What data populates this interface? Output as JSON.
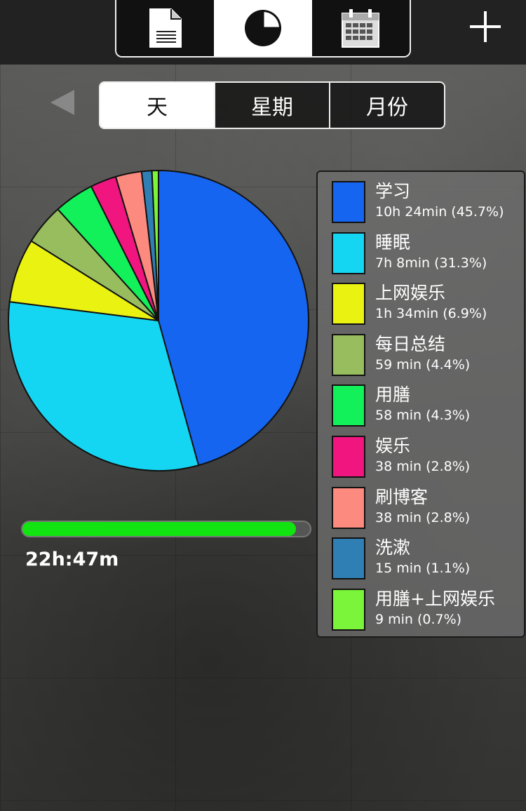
{
  "toolbar": {
    "tabs": [
      {
        "icon": "document-icon",
        "active": false
      },
      {
        "icon": "pie-chart-icon",
        "active": true
      },
      {
        "icon": "calendar-icon",
        "active": false
      }
    ],
    "add_icon": "plus-icon"
  },
  "period": {
    "back_icon": "back-arrow-icon",
    "options": [
      "天",
      "星期",
      "月份"
    ],
    "selected": "天"
  },
  "summary": {
    "total_label": "22h:47m",
    "progress_fraction": 0.95,
    "progress_color": "#11e411"
  },
  "chart_data": {
    "type": "pie",
    "title": "",
    "slices": [
      {
        "label": "学习",
        "duration": "10h 24min",
        "percent_label": "(45.7%)",
        "value": 45.7,
        "color": "#1565f0"
      },
      {
        "label": "睡眠",
        "duration": "7h 8min",
        "percent_label": "(31.3%)",
        "value": 31.3,
        "color": "#15d6f2"
      },
      {
        "label": "上网娱乐",
        "duration": "1h 34min",
        "percent_label": "(6.9%)",
        "value": 6.9,
        "color": "#eaf212"
      },
      {
        "label": "每日总结",
        "duration": "59 min",
        "percent_label": "(4.4%)",
        "value": 4.4,
        "color": "#97bd5e"
      },
      {
        "label": "用膳",
        "duration": "58 min",
        "percent_label": "(4.3%)",
        "value": 4.3,
        "color": "#12f05a"
      },
      {
        "label": "娱乐",
        "duration": "38 min",
        "percent_label": "(2.8%)",
        "value": 2.8,
        "color": "#f0157f"
      },
      {
        "label": "刷博客",
        "duration": "38 min",
        "percent_label": "(2.8%)",
        "value": 2.8,
        "color": "#fc8a7f"
      },
      {
        "label": "洗漱",
        "duration": "15 min",
        "percent_label": "(1.1%)",
        "value": 1.1,
        "color": "#2f7fb5"
      },
      {
        "label": "用膳+上网娱乐",
        "duration": "9 min",
        "percent_label": "(0.7%)",
        "value": 0.7,
        "color": "#7af53a"
      }
    ]
  }
}
